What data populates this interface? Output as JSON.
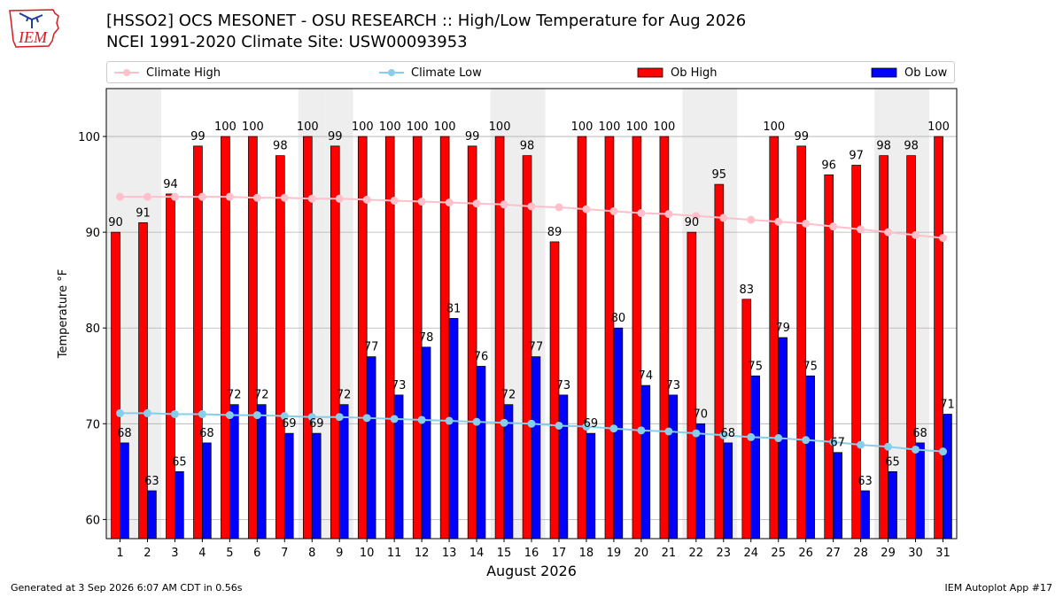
{
  "header": {
    "title_line1": "[HSSO2] OCS MESONET - OSU RESEARCH :: High/Low Temperature for Aug 2026",
    "title_line2": "NCEI 1991-2020 Climate Site: USW00093953",
    "logo_text": "IEM"
  },
  "footer": {
    "generated": "Generated at 3 Sep 2026 6:07 AM CDT in 0.56s",
    "app": "IEM Autoplot App #17"
  },
  "colors": {
    "ob_high": "#ff0000",
    "ob_low": "#0000ff",
    "climate_high": "#ffc0cb",
    "climate_low": "#87ceeb",
    "weekend_band": "#eeeeee",
    "grid": "#b0b0b0",
    "logo_red": "#d71920",
    "logo_blue": "#1f3f9f"
  },
  "chart_data": {
    "type": "bar",
    "xlabel": "August 2026",
    "ylabel": "Temperature °F",
    "ylim": [
      58,
      105
    ],
    "yticks": [
      60,
      70,
      80,
      90,
      100
    ],
    "grid": true,
    "legend_placement": "top",
    "shaded_weekend_days": [
      1,
      2,
      8,
      9,
      15,
      16,
      22,
      23,
      29,
      30
    ],
    "categories": [
      1,
      2,
      3,
      4,
      5,
      6,
      7,
      8,
      9,
      10,
      11,
      12,
      13,
      14,
      15,
      16,
      17,
      18,
      19,
      20,
      21,
      22,
      23,
      24,
      25,
      26,
      27,
      28,
      29,
      30,
      31
    ],
    "series": [
      {
        "name": "Ob High",
        "type": "bar",
        "values": [
          90,
          91,
          94,
          99,
          100,
          100,
          98,
          100,
          99,
          100,
          100,
          100,
          100,
          99,
          100,
          98,
          89,
          100,
          100,
          100,
          100,
          90,
          95,
          83,
          100,
          99,
          96,
          97,
          98,
          98,
          100
        ]
      },
      {
        "name": "Ob Low",
        "type": "bar",
        "values": [
          68,
          63,
          65,
          68,
          72,
          72,
          69,
          69,
          72,
          77,
          73,
          78,
          81,
          76,
          72,
          77,
          73,
          69,
          80,
          74,
          73,
          70,
          68,
          75,
          79,
          75,
          67,
          63,
          65,
          68,
          71
        ]
      },
      {
        "name": "Climate High",
        "type": "line",
        "values": [
          93.7,
          93.7,
          93.7,
          93.7,
          93.7,
          93.6,
          93.6,
          93.5,
          93.5,
          93.4,
          93.3,
          93.2,
          93.1,
          93.0,
          92.9,
          92.7,
          92.6,
          92.4,
          92.2,
          92.0,
          91.9,
          91.7,
          91.5,
          91.3,
          91.1,
          90.9,
          90.6,
          90.3,
          90.0,
          89.7,
          89.4
        ]
      },
      {
        "name": "Climate Low",
        "type": "line",
        "values": [
          71.1,
          71.1,
          71.0,
          71.0,
          70.9,
          70.9,
          70.8,
          70.7,
          70.7,
          70.6,
          70.5,
          70.4,
          70.3,
          70.2,
          70.1,
          70.0,
          69.8,
          69.7,
          69.5,
          69.3,
          69.2,
          69.0,
          68.8,
          68.6,
          68.5,
          68.3,
          68.1,
          67.8,
          67.6,
          67.3,
          67.1
        ]
      }
    ]
  }
}
